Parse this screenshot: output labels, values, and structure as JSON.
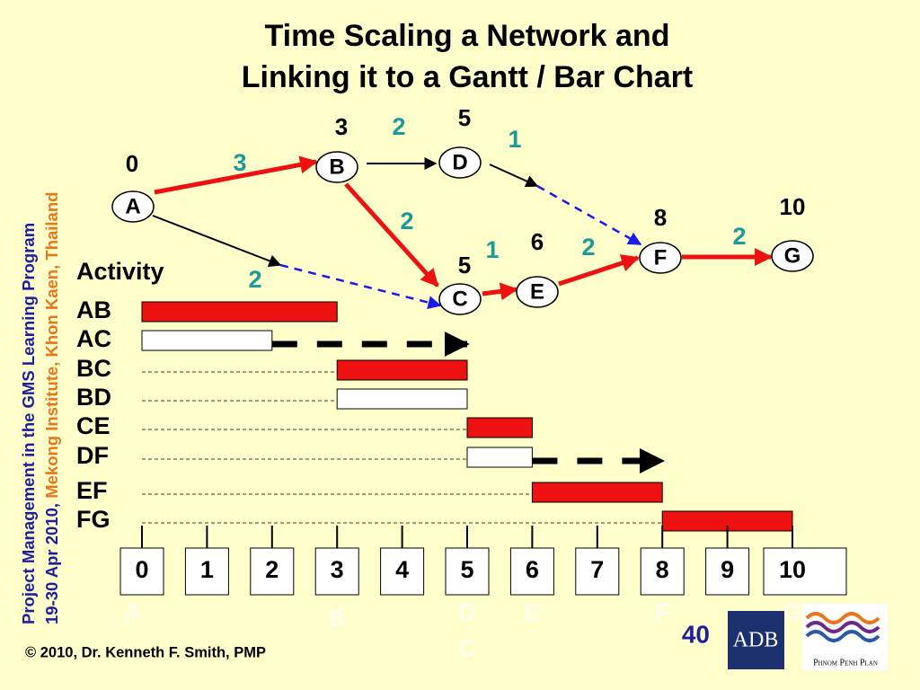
{
  "title": [
    "Time Scaling a Network and",
    "Linking it to a Gantt / Bar Chart"
  ],
  "sidebar": {
    "line1": "Project Management in the GMS Learning Program",
    "line2a": "19-30 Apr 2010, ",
    "line2b": "Mekong Institute, Khon Kaen, Thailand"
  },
  "network": {
    "nodes": [
      {
        "id": "A",
        "time": 0
      },
      {
        "id": "B",
        "time": 3
      },
      {
        "id": "C",
        "time": 5
      },
      {
        "id": "D",
        "time": 5
      },
      {
        "id": "E",
        "time": 6
      },
      {
        "id": "F",
        "time": 8
      },
      {
        "id": "G",
        "time": 10
      }
    ],
    "edges": [
      {
        "from": "A",
        "to": "B",
        "duration": 3,
        "critical": true
      },
      {
        "from": "A",
        "to": "C",
        "duration": 2,
        "critical": false
      },
      {
        "from": "B",
        "to": "C",
        "duration": 2,
        "critical": true
      },
      {
        "from": "B",
        "to": "D",
        "duration": 2,
        "critical": false
      },
      {
        "from": "C",
        "to": "E",
        "duration": 1,
        "critical": true
      },
      {
        "from": "D",
        "to": "F",
        "duration": 1,
        "critical": false
      },
      {
        "from": "E",
        "to": "F",
        "duration": 2,
        "critical": true
      },
      {
        "from": "F",
        "to": "G",
        "duration": 2,
        "critical": true
      }
    ]
  },
  "gantt": {
    "heading": "Activity",
    "activities": [
      {
        "name": "AB",
        "start": 0,
        "end": 3,
        "critical": true
      },
      {
        "name": "AC",
        "start": 0,
        "end": 2,
        "critical": false,
        "float_to": 5
      },
      {
        "name": "BC",
        "start": 3,
        "end": 5,
        "critical": true
      },
      {
        "name": "BD",
        "start": 3,
        "end": 5,
        "critical": false
      },
      {
        "name": "CE",
        "start": 5,
        "end": 6,
        "critical": true
      },
      {
        "name": "DF",
        "start": 5,
        "end": 6,
        "critical": false,
        "float_to": 8
      },
      {
        "name": "EF",
        "start": 6,
        "end": 8,
        "critical": true
      },
      {
        "name": "FG",
        "start": 8,
        "end": 10,
        "critical": true
      }
    ],
    "timeline": [
      0,
      1,
      2,
      3,
      4,
      5,
      6,
      7,
      8,
      9,
      10
    ],
    "events": [
      {
        "label": "A",
        "time": 0
      },
      {
        "label": "B",
        "time": 3
      },
      {
        "label": "D",
        "time": 5
      },
      {
        "label": "C",
        "time": 5
      },
      {
        "label": "E",
        "time": 6
      },
      {
        "label": "F",
        "time": 8
      },
      {
        "label": "G",
        "time": 10
      }
    ]
  },
  "page_number": "40",
  "footer": "© 2010, Dr. Kenneth F. Smith, PMP",
  "logos": [
    "ADB",
    "Phnom Penh Plan"
  ]
}
